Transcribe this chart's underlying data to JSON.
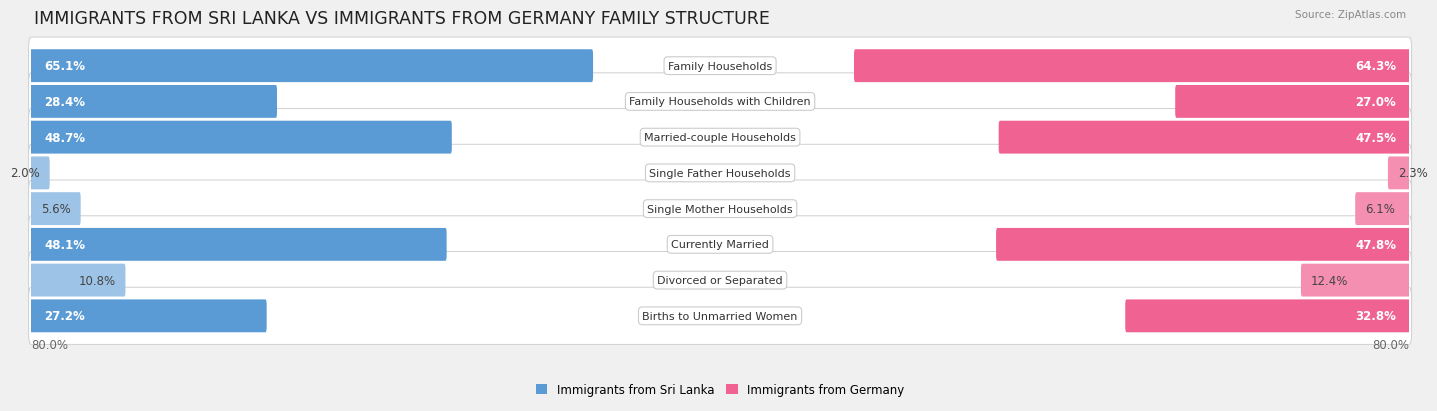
{
  "title": "IMMIGRANTS FROM SRI LANKA VS IMMIGRANTS FROM GERMANY FAMILY STRUCTURE",
  "source": "Source: ZipAtlas.com",
  "categories": [
    "Family Households",
    "Family Households with Children",
    "Married-couple Households",
    "Single Father Households",
    "Single Mother Households",
    "Currently Married",
    "Divorced or Separated",
    "Births to Unmarried Women"
  ],
  "sri_lanka_values": [
    65.1,
    28.4,
    48.7,
    2.0,
    5.6,
    48.1,
    10.8,
    27.2
  ],
  "germany_values": [
    64.3,
    27.0,
    47.5,
    2.3,
    6.1,
    47.8,
    12.4,
    32.8
  ],
  "sl_solid_color": "#5b9bd5",
  "sl_light_color": "#9dc3e6",
  "de_solid_color": "#f06292",
  "de_light_color": "#f48fb1",
  "axis_max": 80.0,
  "legend_label_1": "Immigrants from Sri Lanka",
  "legend_label_2": "Immigrants from Germany",
  "background_color": "#f0f0f0",
  "row_bg_even": "#f7f7f7",
  "row_bg_odd": "#ebebeb",
  "title_fontsize": 12.5,
  "label_fontsize": 8.5,
  "value_fontsize": 8.5,
  "cat_fontsize": 8.0,
  "bar_height": 0.62,
  "solid_threshold": 20.0
}
